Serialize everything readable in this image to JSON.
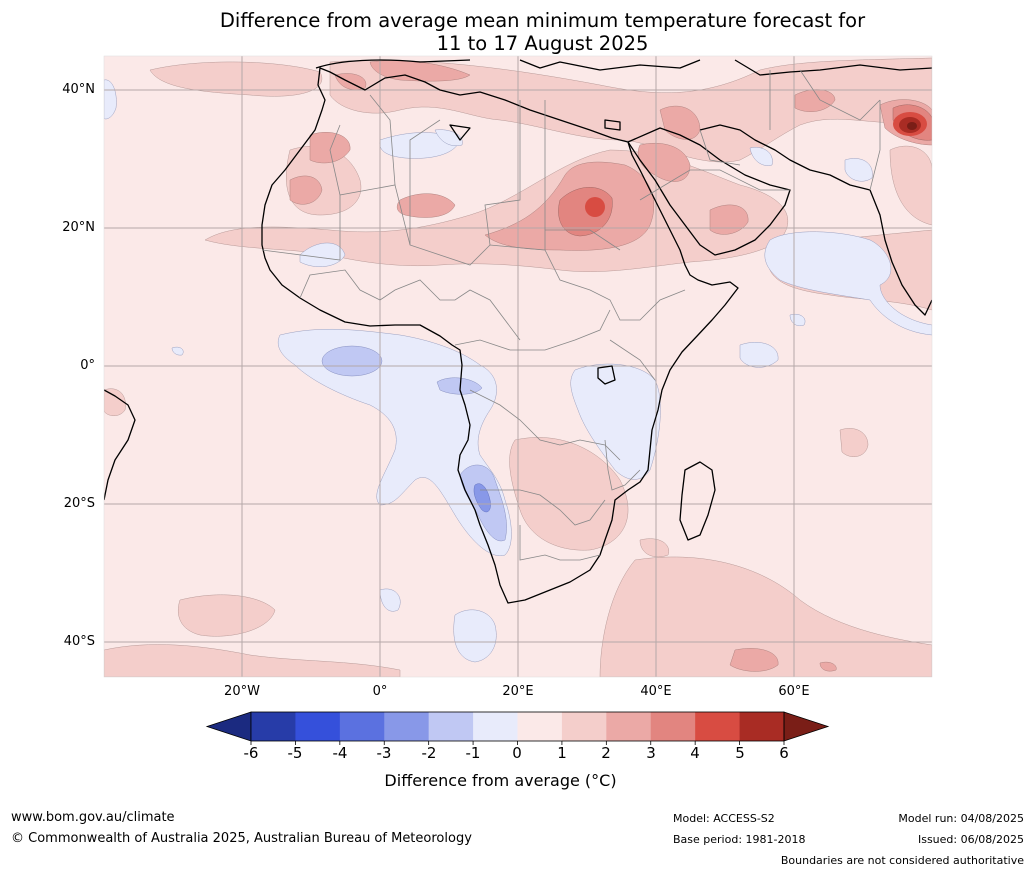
{
  "title": {
    "line1": "Difference from average mean minimum temperature forecast for",
    "line2": "11 to 17 August 2025"
  },
  "axes": {
    "lat_ticks": [
      "40°N",
      "20°N",
      "0°",
      "20°S",
      "40°S"
    ],
    "lon_ticks": [
      "20°W",
      "0°",
      "20°E",
      "40°E",
      "60°E"
    ]
  },
  "colorbar": {
    "ticks": [
      "-6",
      "-5",
      "-4",
      "-3",
      "-2",
      "-1",
      "0",
      "1",
      "2",
      "3",
      "4",
      "5",
      "6"
    ],
    "label": "Difference from average (°C)",
    "colors": [
      "#1b2a80",
      "#273ca8",
      "#3550db",
      "#5b71e0",
      "#8898e8",
      "#c0c8f3",
      "#e8ebfb",
      "#fbe9e8",
      "#f4cecb",
      "#eba9a6",
      "#e28580",
      "#d84c42",
      "#a92c24",
      "#7a1e17"
    ]
  },
  "footer": {
    "website": "www.bom.gov.au/climate",
    "copyright": "© Commonwealth of Australia 2025, Australian Bureau of Meteorology",
    "model": "Model: ACCESS-S2",
    "base_period": "Base period: 1981-2018",
    "model_run": "Model run: 04/08/2025",
    "issued": "Issued: 06/08/2025",
    "disclaimer": "Boundaries are not considered authoritative"
  }
}
